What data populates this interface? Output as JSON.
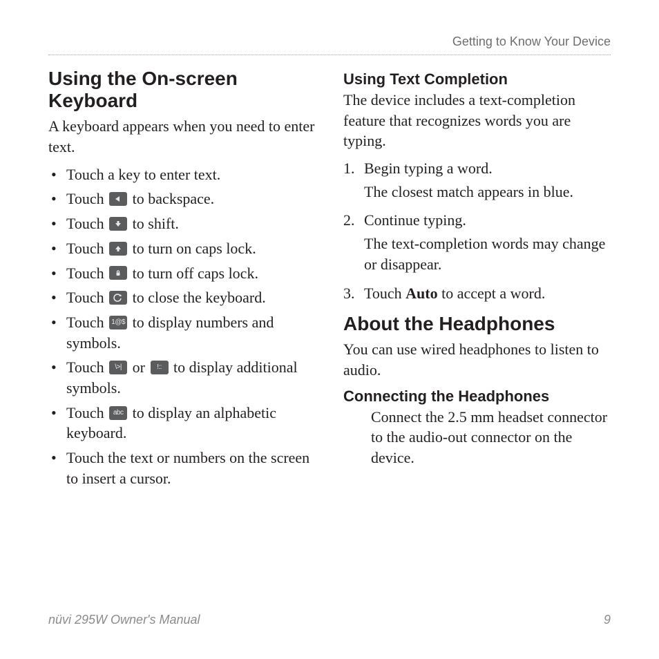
{
  "header": {
    "running_head": "Getting to Know Your Device"
  },
  "left": {
    "h2": "Using the On-screen Keyboard",
    "intro": "A keyboard appears when you need to enter text.",
    "bullets": [
      {
        "pre": "Touch a key to enter text."
      },
      {
        "pre": "Touch ",
        "icon": "backspace",
        "post": " to backspace."
      },
      {
        "pre": "Touch ",
        "icon": "shift-down",
        "post": " to shift."
      },
      {
        "pre": "Touch ",
        "icon": "shift-up",
        "post": " to turn on caps lock."
      },
      {
        "pre": "Touch ",
        "icon": "caps-lock",
        "post": "  to turn off caps lock."
      },
      {
        "pre": "Touch ",
        "icon": "close-kbd",
        "post": " to close the keyboard."
      },
      {
        "pre": "Touch ",
        "icon": "numsym",
        "post": " to display numbers and symbols."
      },
      {
        "pre": "Touch ",
        "icon": "sym-a",
        "mid": " or ",
        "icon2": "sym-b",
        "post": " to display additional symbols."
      },
      {
        "pre": "Touch ",
        "icon": "abc",
        "post": " to display an alphabetic keyboard."
      },
      {
        "pre": "Touch the text or numbers on the screen to insert a cursor."
      }
    ]
  },
  "right": {
    "text_completion": {
      "h3": "Using Text Completion",
      "intro": "The device includes a text-completion feature that recognizes words you are typing.",
      "steps": [
        {
          "main": "Begin typing a word.",
          "sub": "The closest match appears in blue."
        },
        {
          "main": "Continue typing.",
          "sub": "The text-completion words may change or disappear."
        },
        {
          "main_pre": "Touch ",
          "main_bold": "Auto",
          "main_post": " to accept a word."
        }
      ]
    },
    "headphones": {
      "h2": "About the Headphones",
      "intro": "You can use wired headphones to listen to audio.",
      "sub_h3": "Connecting the Headphones",
      "sub_body": "Connect the 2.5 mm headset connector to the audio-out connector on the device."
    }
  },
  "footer": {
    "manual": "nüvi 295W Owner's Manual",
    "page": "9"
  },
  "icons": {
    "backspace": "◂",
    "shift-down": "↓",
    "shift-up": "↑",
    "caps-lock": "lock",
    "close-kbd": "undo",
    "numsym": "1@$",
    "sym-a": "\\>|",
    "sym-b": "!::",
    "abc": "abc"
  },
  "style": {
    "page_bg": "#ffffff",
    "text_color": "#231f20",
    "muted_color": "#6d6e71",
    "footer_color": "#8a8b8d",
    "key_bg": "#5b5c5e",
    "key_fg": "#e8e8e8",
    "rule_color": "#9fa0a2",
    "body_font_size_pt": 16,
    "h2_font_size_pt": 21,
    "h3_font_size_pt": 16
  }
}
